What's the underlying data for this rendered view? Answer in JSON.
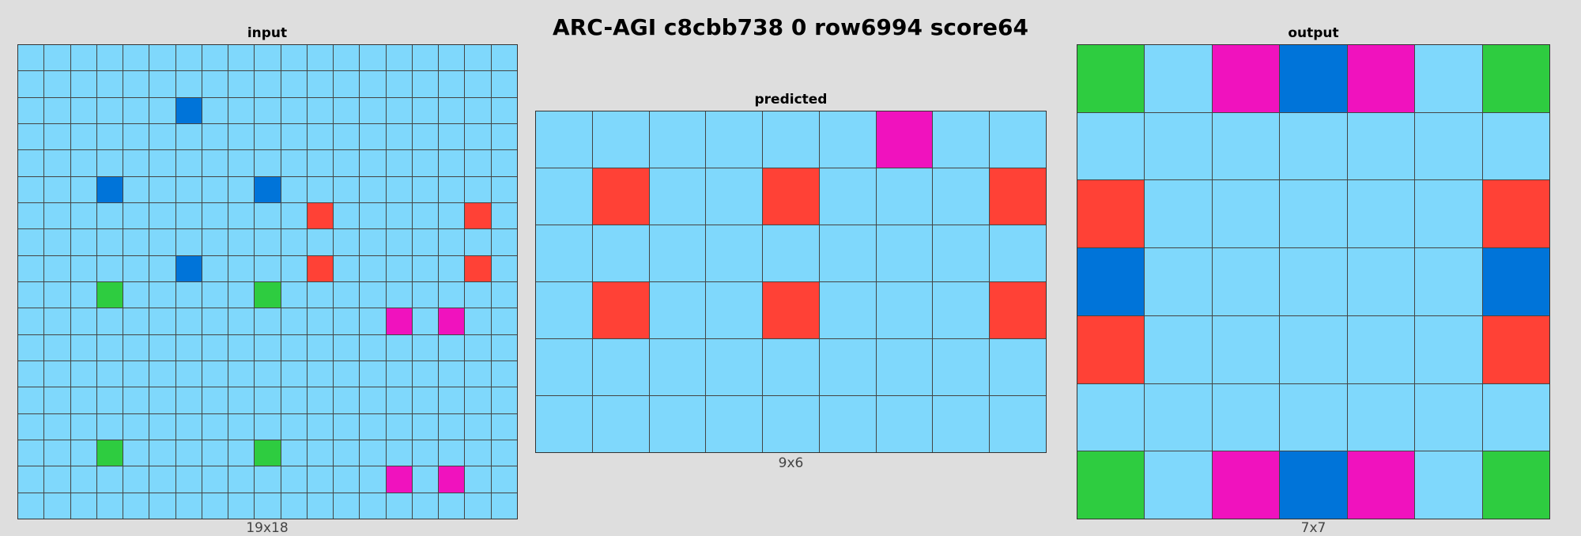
{
  "title": "ARC-AGI c8cbb738 0 row6994 score64",
  "palette": {
    "B": "#7fd8fc",
    "b": "#0074d9",
    "r": "#ff4136",
    "g": "#2ecc40",
    "m": "#f012be"
  },
  "panels": {
    "input": {
      "label": "input",
      "dims": "19x18",
      "rows": [
        "BBBBBBBBBBBBBBBBBBB",
        "BBBBBBBBBBBBBBBBBBB",
        "BBBBBBbBBBBBBBBBBBB",
        "BBBBBBBBBBBBBBBBBBB",
        "BBBBBBBBBBBBBBBBBBB",
        "BBBbBBBBBbBBBBBBBBB",
        "BBBBBBBBBBBrBBBBBrB",
        "BBBBBBBBBBBBBBBBBBB",
        "BBBBBBbBBBBrBBBBBrB",
        "BBBgBBBBBgBBBBBBBBB",
        "BBBBBBBBBBBBBBmBmBB",
        "BBBBBBBBBBBBBBBBBBB",
        "BBBBBBBBBBBBBBBBBBB",
        "BBBBBBBBBBBBBBBBBBB",
        "BBBBBBBBBBBBBBBBBBB",
        "BBBgBBBBBgBBBBBBBBB",
        "BBBBBBBBBBBBBBmBmBB",
        "BBBBBBBBBBBBBBBBBBB"
      ]
    },
    "predicted": {
      "label": "predicted",
      "dims": "9x6",
      "rows": [
        "BBBBBBmBB",
        "BrBBrBBBr",
        "BBBBBBBBB",
        "BrBBrBBBr",
        "BBBBBBBBB",
        "BBBBBBBBB"
      ]
    },
    "output": {
      "label": "output",
      "dims": "7x7",
      "rows": [
        "gBmbmBg",
        "BBBBBBB",
        "rBBBBBr",
        "bBBBBBb",
        "rBBBBBr",
        "BBBBBBB",
        "gBmbmBg"
      ]
    }
  }
}
